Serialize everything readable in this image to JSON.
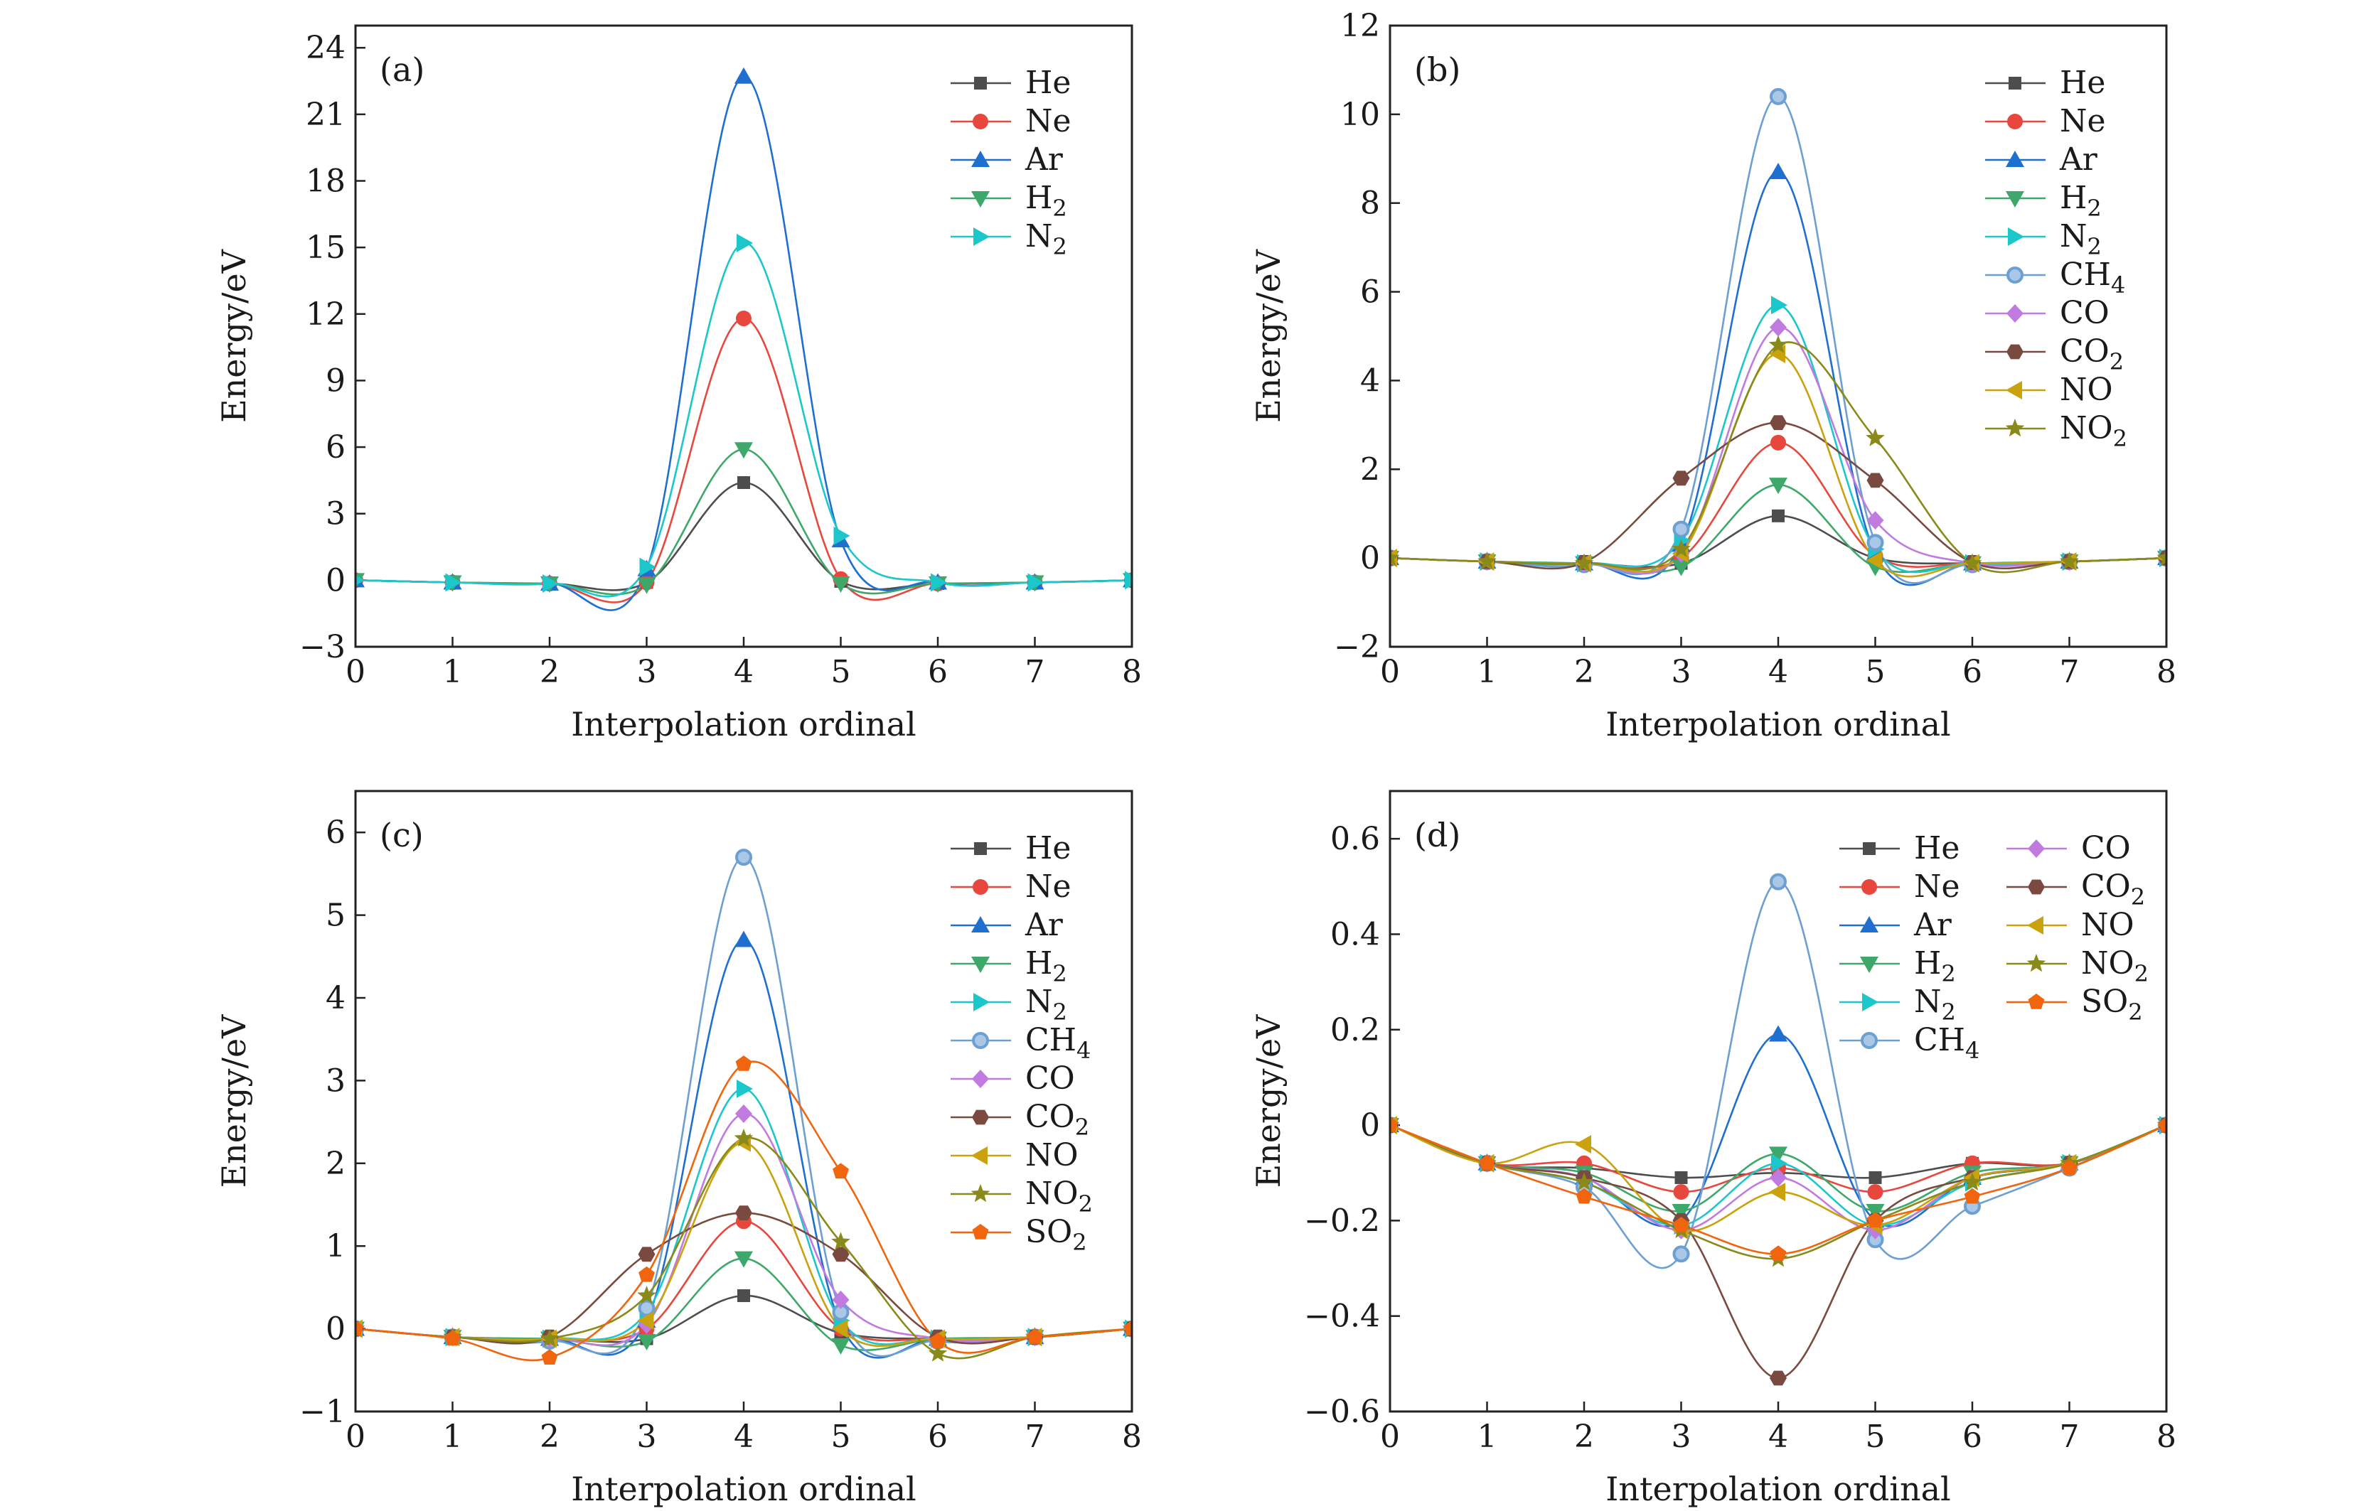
{
  "colors": {
    "He": "#4d4d4d",
    "Ne": "#e8473e",
    "Ar": "#1f6fd1",
    "H2": "#3da86a",
    "N2": "#1cc7cc",
    "CH4": "#6c9fd2",
    "CO": "#c07ae0",
    "CO2": "#7a4a40",
    "NO": "#c9a20e",
    "NO2": "#8a8a1a",
    "SO2": "#f0650d"
  },
  "chart_data": [
    {
      "type": "line",
      "panel_label": "(a)",
      "xlabel": "Interpolation ordinal",
      "ylabel": "Energy/eV",
      "xlim": [
        0,
        8
      ],
      "ylim": [
        -3,
        25
      ],
      "xticks": [
        "0",
        "1",
        "2",
        "3",
        "4",
        "5",
        "6",
        "7",
        "8"
      ],
      "yticks": [
        "−3",
        "0",
        "3",
        "6",
        "9",
        "12",
        "15",
        "18",
        "21",
        "24"
      ],
      "ytick_values": [
        -3,
        0,
        3,
        6,
        9,
        12,
        15,
        18,
        21,
        24
      ],
      "legend": {
        "placement": "top-right",
        "columns": 1
      },
      "x": [
        0,
        1,
        2,
        3,
        4,
        5,
        6,
        7,
        8
      ],
      "series": [
        {
          "key": "He",
          "name": "He",
          "marker": "square",
          "values": [
            0,
            -0.1,
            -0.15,
            -0.1,
            4.4,
            -0.05,
            -0.15,
            -0.1,
            0
          ]
        },
        {
          "key": "Ne",
          "name": "Ne",
          "marker": "circle",
          "values": [
            0,
            -0.1,
            -0.15,
            -0.1,
            11.8,
            0.05,
            -0.15,
            -0.1,
            0
          ]
        },
        {
          "key": "Ar",
          "name": "Ar",
          "marker": "triangle-up",
          "values": [
            0,
            -0.1,
            -0.15,
            0.5,
            22.7,
            1.8,
            -0.1,
            -0.1,
            0
          ]
        },
        {
          "key": "H2",
          "name": "H",
          "sub": "2",
          "marker": "triangle-down",
          "values": [
            0,
            -0.1,
            -0.15,
            -0.2,
            5.9,
            -0.15,
            -0.15,
            -0.1,
            0
          ]
        },
        {
          "key": "N2",
          "name": "N",
          "sub": "2",
          "marker": "triangle-right",
          "values": [
            0,
            -0.1,
            -0.15,
            0.6,
            15.2,
            2.0,
            -0.1,
            -0.1,
            0
          ]
        }
      ]
    },
    {
      "type": "line",
      "panel_label": "(b)",
      "xlabel": "Interpolation ordinal",
      "ylabel": "Energy/eV",
      "xlim": [
        0,
        8
      ],
      "ylim": [
        -2,
        12
      ],
      "xticks": [
        "0",
        "1",
        "2",
        "3",
        "4",
        "5",
        "6",
        "7",
        "8"
      ],
      "yticks": [
        "−2",
        "0",
        "2",
        "4",
        "6",
        "8",
        "10",
        "12"
      ],
      "ytick_values": [
        -2,
        0,
        2,
        4,
        6,
        8,
        10,
        12
      ],
      "legend": {
        "placement": "top-right",
        "columns": 1
      },
      "x": [
        0,
        1,
        2,
        3,
        4,
        5,
        6,
        7,
        8
      ],
      "series": [
        {
          "key": "He",
          "name": "He",
          "marker": "square",
          "values": [
            0,
            -0.08,
            -0.12,
            -0.12,
            0.95,
            0,
            -0.12,
            -0.08,
            0
          ]
        },
        {
          "key": "Ne",
          "name": "Ne",
          "marker": "circle",
          "values": [
            0,
            -0.08,
            -0.12,
            0,
            2.6,
            0.05,
            -0.12,
            -0.08,
            0
          ]
        },
        {
          "key": "Ar",
          "name": "Ar",
          "marker": "triangle-up",
          "values": [
            0,
            -0.08,
            -0.12,
            0.3,
            8.7,
            0.1,
            -0.12,
            -0.08,
            0
          ]
        },
        {
          "key": "H2",
          "name": "H",
          "sub": "2",
          "marker": "triangle-down",
          "values": [
            0,
            -0.08,
            -0.12,
            -0.2,
            1.65,
            -0.2,
            -0.12,
            -0.08,
            0
          ]
        },
        {
          "key": "N2",
          "name": "N",
          "sub": "2",
          "marker": "triangle-right",
          "values": [
            0,
            -0.08,
            -0.12,
            0.4,
            5.7,
            0.2,
            -0.12,
            -0.08,
            0
          ]
        },
        {
          "key": "CH4",
          "name": "CH",
          "sub": "4",
          "marker": "circle-ring",
          "values": [
            0,
            -0.08,
            -0.15,
            0.65,
            10.4,
            0.35,
            -0.15,
            -0.08,
            0
          ]
        },
        {
          "key": "CO",
          "name": "CO",
          "marker": "diamond",
          "values": [
            0,
            -0.08,
            -0.12,
            0.1,
            5.2,
            0.85,
            -0.12,
            -0.08,
            0
          ]
        },
        {
          "key": "CO2",
          "name": "CO",
          "sub": "2",
          "marker": "hexagon",
          "values": [
            0,
            -0.08,
            -0.1,
            1.8,
            3.05,
            1.75,
            -0.1,
            -0.08,
            0
          ]
        },
        {
          "key": "NO",
          "name": "NO",
          "marker": "triangle-left",
          "values": [
            0,
            -0.08,
            -0.12,
            0.1,
            4.6,
            -0.05,
            -0.12,
            -0.08,
            0
          ]
        },
        {
          "key": "NO2",
          "name": "NO",
          "sub": "2",
          "marker": "star",
          "values": [
            0,
            -0.08,
            -0.12,
            0.2,
            4.8,
            2.7,
            -0.12,
            -0.08,
            0
          ]
        }
      ]
    },
    {
      "type": "line",
      "panel_label": "(c)",
      "xlabel": "Interpolation ordinal",
      "ylabel": "Energy/eV",
      "xlim": [
        0,
        8
      ],
      "ylim": [
        -1,
        6.5
      ],
      "xticks": [
        "0",
        "1",
        "2",
        "3",
        "4",
        "5",
        "6",
        "7",
        "8"
      ],
      "yticks": [
        "−1",
        "0",
        "1",
        "2",
        "3",
        "4",
        "5",
        "6"
      ],
      "ytick_values": [
        -1,
        0,
        1,
        2,
        3,
        4,
        5,
        6
      ],
      "legend": {
        "placement": "top-right",
        "columns": 1
      },
      "x": [
        0,
        1,
        2,
        3,
        4,
        5,
        6,
        7,
        8
      ],
      "series": [
        {
          "key": "He",
          "name": "He",
          "marker": "square",
          "values": [
            0,
            -0.1,
            -0.12,
            -0.12,
            0.4,
            -0.05,
            -0.12,
            -0.1,
            0
          ]
        },
        {
          "key": "Ne",
          "name": "Ne",
          "marker": "circle",
          "values": [
            0,
            -0.1,
            -0.12,
            0,
            1.3,
            0,
            -0.12,
            -0.1,
            0
          ]
        },
        {
          "key": "Ar",
          "name": "Ar",
          "marker": "triangle-up",
          "values": [
            0,
            -0.1,
            -0.12,
            0.1,
            4.7,
            0.05,
            -0.12,
            -0.1,
            0
          ]
        },
        {
          "key": "H2",
          "name": "H",
          "sub": "2",
          "marker": "triangle-down",
          "values": [
            0,
            -0.1,
            -0.12,
            -0.15,
            0.85,
            -0.2,
            -0.12,
            -0.1,
            0
          ]
        },
        {
          "key": "N2",
          "name": "N",
          "sub": "2",
          "marker": "triangle-right",
          "values": [
            0,
            -0.1,
            -0.12,
            0.2,
            2.9,
            0.1,
            -0.12,
            -0.1,
            0
          ]
        },
        {
          "key": "CH4",
          "name": "CH",
          "sub": "4",
          "marker": "circle-ring",
          "values": [
            0,
            -0.1,
            -0.15,
            0.25,
            5.7,
            0.2,
            -0.15,
            -0.1,
            0
          ]
        },
        {
          "key": "CO",
          "name": "CO",
          "marker": "diamond",
          "values": [
            0,
            -0.1,
            -0.12,
            0.05,
            2.6,
            0.35,
            -0.12,
            -0.1,
            0
          ]
        },
        {
          "key": "CO2",
          "name": "CO",
          "sub": "2",
          "marker": "hexagon",
          "values": [
            0,
            -0.1,
            -0.1,
            0.9,
            1.4,
            0.9,
            -0.1,
            -0.1,
            0
          ]
        },
        {
          "key": "NO",
          "name": "NO",
          "marker": "triangle-left",
          "values": [
            0,
            -0.1,
            -0.12,
            0.1,
            2.25,
            0,
            -0.12,
            -0.1,
            0
          ]
        },
        {
          "key": "NO2",
          "name": "NO",
          "sub": "2",
          "marker": "star",
          "values": [
            0,
            -0.1,
            -0.12,
            0.4,
            2.3,
            1.05,
            -0.3,
            -0.1,
            0
          ]
        },
        {
          "key": "SO2",
          "name": "SO",
          "sub": "2",
          "marker": "pentagon",
          "values": [
            0,
            -0.12,
            -0.35,
            0.65,
            3.2,
            1.9,
            -0.15,
            -0.1,
            0
          ]
        }
      ]
    },
    {
      "type": "line",
      "panel_label": "(d)",
      "xlabel": "Interpolation ordinal",
      "ylabel": "Energy/eV",
      "xlim": [
        0,
        8
      ],
      "ylim": [
        -0.6,
        0.7
      ],
      "xticks": [
        "0",
        "1",
        "2",
        "3",
        "4",
        "5",
        "6",
        "7",
        "8"
      ],
      "yticks": [
        "−0.6",
        "−0.4",
        "−0.2",
        "0",
        "0.2",
        "0.4",
        "0.6"
      ],
      "ytick_values": [
        -0.6,
        -0.4,
        -0.2,
        0,
        0.2,
        0.4,
        0.6
      ],
      "legend": {
        "placement": "top-right",
        "columns": 2
      },
      "x": [
        0,
        1,
        2,
        3,
        4,
        5,
        6,
        7,
        8
      ],
      "series": [
        {
          "key": "He",
          "name": "He",
          "marker": "square",
          "values": [
            0,
            -0.08,
            -0.09,
            -0.11,
            -0.1,
            -0.11,
            -0.08,
            -0.08,
            0
          ]
        },
        {
          "key": "Ne",
          "name": "Ne",
          "marker": "circle",
          "values": [
            0,
            -0.08,
            -0.08,
            -0.14,
            -0.09,
            -0.14,
            -0.08,
            -0.08,
            0
          ]
        },
        {
          "key": "Ar",
          "name": "Ar",
          "marker": "triangle-up",
          "values": [
            0,
            -0.08,
            -0.11,
            -0.2,
            0.19,
            -0.2,
            -0.11,
            -0.08,
            0
          ]
        },
        {
          "key": "H2",
          "name": "H",
          "sub": "2",
          "marker": "triangle-down",
          "values": [
            0,
            -0.08,
            -0.1,
            -0.18,
            -0.06,
            -0.18,
            -0.1,
            -0.08,
            0
          ]
        },
        {
          "key": "N2",
          "name": "N",
          "sub": "2",
          "marker": "triangle-right",
          "values": [
            0,
            -0.08,
            -0.12,
            -0.21,
            -0.08,
            -0.21,
            -0.12,
            -0.08,
            0
          ]
        },
        {
          "key": "CH4",
          "name": "CH",
          "sub": "4",
          "marker": "circle-ring",
          "values": [
            0,
            -0.08,
            -0.13,
            -0.27,
            0.51,
            -0.24,
            -0.17,
            -0.09,
            0
          ]
        },
        {
          "key": "CO",
          "name": "CO",
          "marker": "diamond",
          "values": [
            0,
            -0.08,
            -0.11,
            -0.22,
            -0.11,
            -0.22,
            -0.11,
            -0.08,
            0
          ]
        },
        {
          "key": "CO2",
          "name": "CO",
          "sub": "2",
          "marker": "hexagon",
          "values": [
            0,
            -0.08,
            -0.11,
            -0.2,
            -0.53,
            -0.2,
            -0.11,
            -0.08,
            0
          ]
        },
        {
          "key": "NO",
          "name": "NO",
          "marker": "triangle-left",
          "values": [
            0,
            -0.08,
            -0.04,
            -0.22,
            -0.14,
            -0.21,
            -0.11,
            -0.08,
            0
          ]
        },
        {
          "key": "NO2",
          "name": "NO",
          "sub": "2",
          "marker": "star",
          "values": [
            0,
            -0.08,
            -0.12,
            -0.22,
            -0.28,
            -0.2,
            -0.12,
            -0.08,
            0
          ]
        },
        {
          "key": "SO2",
          "name": "SO",
          "sub": "2",
          "marker": "pentagon",
          "values": [
            0,
            -0.08,
            -0.15,
            -0.21,
            -0.27,
            -0.2,
            -0.15,
            -0.09,
            0
          ]
        }
      ]
    }
  ]
}
